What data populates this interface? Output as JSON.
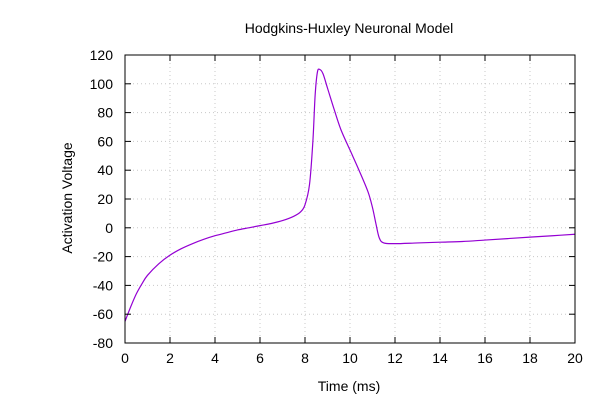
{
  "chart_data": {
    "type": "line",
    "title": "Hodgkins-Huxley Neuronal Model",
    "xlabel": "Time (ms)",
    "ylabel": "Activation Voltage",
    "xlim": [
      0,
      20
    ],
    "ylim": [
      -80,
      120
    ],
    "xticks": [
      0,
      2,
      4,
      6,
      8,
      10,
      12,
      14,
      16,
      18,
      20
    ],
    "yticks": [
      -80,
      -60,
      -40,
      -20,
      0,
      20,
      40,
      60,
      80,
      100,
      120
    ],
    "grid": true,
    "legend": "none",
    "series": [
      {
        "color": "#9400d3",
        "x": [
          0,
          0.25,
          0.5,
          0.75,
          1,
          1.5,
          2,
          2.5,
          3,
          3.5,
          4,
          4.5,
          5,
          5.5,
          6,
          6.5,
          7,
          7.5,
          7.8,
          8.0,
          8.2,
          8.35,
          8.45,
          8.55,
          8.65,
          8.8,
          9.0,
          9.3,
          9.6,
          10.0,
          10.4,
          10.8,
          11.0,
          11.15,
          11.3,
          11.5,
          12,
          13,
          14,
          15,
          16,
          17,
          18,
          19,
          20
        ],
        "y": [
          -65,
          -55,
          -46,
          -39,
          -33,
          -25,
          -19,
          -14.5,
          -11,
          -8,
          -5.5,
          -3.5,
          -1.5,
          0,
          1.5,
          3,
          5,
          8,
          11,
          16,
          30,
          60,
          92,
          108,
          110,
          107,
          97,
          82,
          68,
          54,
          40,
          25,
          14,
          3,
          -7,
          -10.5,
          -11,
          -10.5,
          -10,
          -9.5,
          -8.5,
          -7.5,
          -6.5,
          -5.5,
          -4.5
        ]
      }
    ]
  }
}
